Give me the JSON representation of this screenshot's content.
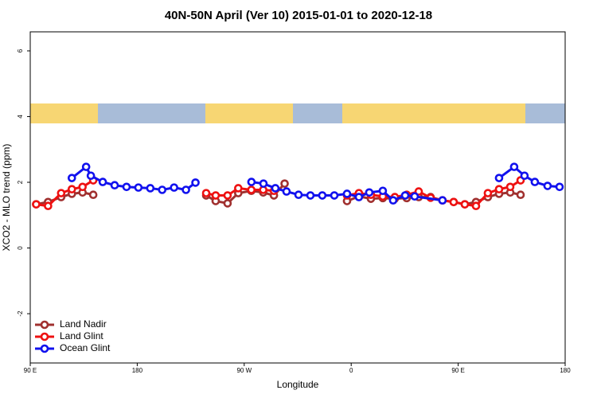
{
  "chart_data": {
    "type": "line",
    "title": "40N-50N April (Ver 10)   2015-01-01 to 2020-12-18",
    "x_label": "Longitude",
    "y_label": "XCO2 - MLO trend (ppm)",
    "xlim": [
      90,
      540
    ],
    "ylim": [
      -3.5,
      6.58
    ],
    "xticks": [
      {
        "value": 90,
        "label": "90 E"
      },
      {
        "value": 180,
        "label": "180"
      },
      {
        "value": 270,
        "label": "90 W"
      },
      {
        "value": 360,
        "label": "0"
      },
      {
        "value": 450,
        "label": "90 E"
      },
      {
        "value": 540,
        "label": "180"
      }
    ],
    "yticks": [
      -2,
      0,
      2,
      4,
      6
    ],
    "legend": "bottom-left",
    "series": [
      {
        "name": "Land Nadir",
        "color": "#a0302f",
        "x": [
          95,
          105,
          116,
          125,
          134,
          143,
          null,
          238,
          246,
          256,
          265,
          276,
          286,
          295,
          304,
          null,
          356.5,
          366.5,
          376.6,
          386.6,
          396.7,
          406.7,
          416.8,
          426.8,
          436.8,
          446.2,
          455.6,
          465,
          475,
          484.4,
          493.8,
          502.5
        ],
        "values": [
          1.33,
          1.4,
          1.55,
          1.65,
          1.69,
          1.62,
          null,
          1.6,
          1.43,
          1.36,
          1.67,
          1.74,
          1.69,
          1.6,
          1.96,
          null,
          1.43,
          1.57,
          1.5,
          1.52,
          1.5,
          1.52,
          1.55,
          1.55,
          1.45,
          1.4,
          1.33,
          1.4,
          1.55,
          1.65,
          1.69,
          1.62
        ]
      },
      {
        "name": "Land Glint",
        "color": "#ee1111",
        "x": [
          95,
          105,
          116,
          125,
          134,
          143,
          null,
          238,
          246,
          256,
          265,
          276,
          286,
          295,
          null,
          356.5,
          366.5,
          376.6,
          386.6,
          396.7,
          406.7,
          416.8,
          426.8,
          436.8,
          446.2,
          455.6,
          465,
          475,
          484.4,
          493.8,
          502.5
        ],
        "values": [
          1.33,
          1.28,
          1.67,
          1.79,
          1.86,
          2.06,
          null,
          1.67,
          1.6,
          1.6,
          1.82,
          1.77,
          1.77,
          1.74,
          null,
          1.6,
          1.67,
          1.62,
          1.57,
          1.55,
          1.62,
          1.72,
          1.53,
          1.45,
          1.4,
          1.33,
          1.28,
          1.67,
          1.79,
          1.86,
          2.06
        ]
      },
      {
        "name": "Ocean Glint",
        "color": "#1111ee",
        "x": [
          125,
          137,
          141,
          151,
          161,
          171,
          181,
          191,
          201,
          211,
          221,
          229,
          null,
          276.1,
          286.2,
          296.2,
          305.6,
          315.7,
          325.7,
          335.7,
          345.8,
          356.5,
          366.5,
          375.2,
          386.6,
          395.3,
          405.4,
          413.4,
          436.8,
          null,
          484.4,
          497.1,
          505.8,
          514.5,
          525.2,
          535.3
        ],
        "values": [
          2.13,
          2.47,
          2.2,
          2.01,
          1.91,
          1.86,
          1.84,
          1.82,
          1.77,
          1.84,
          1.77,
          1.99,
          null,
          2.01,
          1.96,
          1.82,
          1.72,
          1.62,
          1.6,
          1.6,
          1.6,
          1.65,
          1.55,
          1.69,
          1.74,
          1.45,
          1.6,
          1.57,
          1.45,
          null,
          2.13,
          2.47,
          2.2,
          2.01,
          1.89,
          1.86
        ]
      }
    ]
  }
}
